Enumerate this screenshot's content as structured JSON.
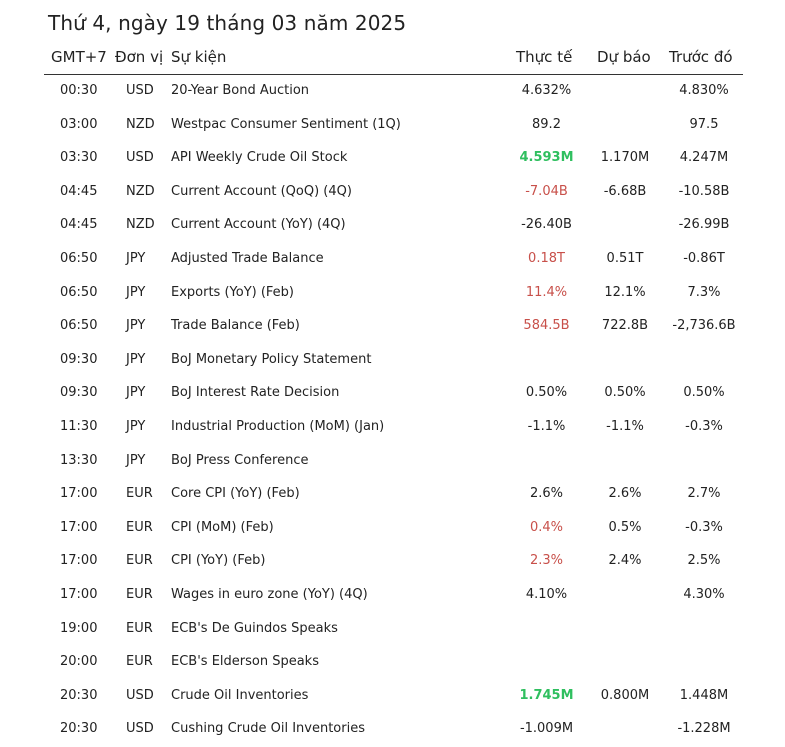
{
  "title": "Thứ 4, ngày 19 tháng 03 năm 2025",
  "headers": {
    "time": "GMT+7",
    "currency": "Đơn vị",
    "event": "Sự kiện",
    "actual": "Thực tế",
    "forecast": "Dự báo",
    "previous": "Trước đó"
  },
  "colors": {
    "negative": "#c8504a",
    "positive": "#2fbf5f"
  },
  "rows": [
    {
      "time": "00:30",
      "cur": "USD",
      "event": "20-Year Bond Auction",
      "actual": "4.632%",
      "actual_state": "neutral",
      "forecast": "",
      "previous": "4.830%"
    },
    {
      "time": "03:00",
      "cur": "NZD",
      "event": "Westpac Consumer Sentiment (1Q)",
      "actual": "89.2",
      "actual_state": "neutral",
      "forecast": "",
      "previous": "97.5"
    },
    {
      "time": "03:30",
      "cur": "USD",
      "event": "API Weekly Crude Oil Stock",
      "actual": "4.593M",
      "actual_state": "pos",
      "forecast": "1.170M",
      "previous": "4.247M"
    },
    {
      "time": "04:45",
      "cur": "NZD",
      "event": "Current Account (QoQ) (4Q)",
      "actual": "-7.04B",
      "actual_state": "neg",
      "forecast": "-6.68B",
      "previous": "-10.58B"
    },
    {
      "time": "04:45",
      "cur": "NZD",
      "event": "Current Account (YoY) (4Q)",
      "actual": "-26.40B",
      "actual_state": "neutral",
      "forecast": "",
      "previous": "-26.99B"
    },
    {
      "time": "06:50",
      "cur": "JPY",
      "event": "Adjusted Trade Balance",
      "actual": "0.18T",
      "actual_state": "neg",
      "forecast": "0.51T",
      "previous": "-0.86T"
    },
    {
      "time": "06:50",
      "cur": "JPY",
      "event": "Exports (YoY) (Feb)",
      "actual": "11.4%",
      "actual_state": "neg",
      "forecast": "12.1%",
      "previous": "7.3%"
    },
    {
      "time": "06:50",
      "cur": "JPY",
      "event": "Trade Balance (Feb)",
      "actual": "584.5B",
      "actual_state": "neg",
      "forecast": "722.8B",
      "previous": "-2,736.6B"
    },
    {
      "time": "09:30",
      "cur": "JPY",
      "event": "BoJ Monetary Policy Statement",
      "actual": "",
      "actual_state": "neutral",
      "forecast": "",
      "previous": ""
    },
    {
      "time": "09:30",
      "cur": "JPY",
      "event": "BoJ Interest Rate Decision",
      "actual": "0.50%",
      "actual_state": "neutral",
      "forecast": "0.50%",
      "previous": "0.50%"
    },
    {
      "time": "11:30",
      "cur": "JPY",
      "event": "Industrial Production (MoM) (Jan)",
      "actual": "-1.1%",
      "actual_state": "neutral",
      "forecast": "-1.1%",
      "previous": "-0.3%"
    },
    {
      "time": "13:30",
      "cur": "JPY",
      "event": "BoJ Press Conference",
      "actual": "",
      "actual_state": "neutral",
      "forecast": "",
      "previous": ""
    },
    {
      "time": "17:00",
      "cur": "EUR",
      "event": "Core CPI (YoY) (Feb)",
      "actual": "2.6%",
      "actual_state": "neutral",
      "forecast": "2.6%",
      "previous": "2.7%"
    },
    {
      "time": "17:00",
      "cur": "EUR",
      "event": "CPI (MoM) (Feb)",
      "actual": "0.4%",
      "actual_state": "neg",
      "forecast": "0.5%",
      "previous": "-0.3%"
    },
    {
      "time": "17:00",
      "cur": "EUR",
      "event": "CPI (YoY) (Feb)",
      "actual": "2.3%",
      "actual_state": "neg",
      "forecast": "2.4%",
      "previous": "2.5%"
    },
    {
      "time": "17:00",
      "cur": "EUR",
      "event": "Wages in euro zone (YoY) (4Q)",
      "actual": "4.10%",
      "actual_state": "neutral",
      "forecast": "",
      "previous": "4.30%"
    },
    {
      "time": "19:00",
      "cur": "EUR",
      "event": "ECB's De Guindos Speaks",
      "actual": "",
      "actual_state": "neutral",
      "forecast": "",
      "previous": ""
    },
    {
      "time": "20:00",
      "cur": "EUR",
      "event": "ECB's Elderson Speaks",
      "actual": "",
      "actual_state": "neutral",
      "forecast": "",
      "previous": ""
    },
    {
      "time": "20:30",
      "cur": "USD",
      "event": "Crude Oil Inventories",
      "actual": "1.745M",
      "actual_state": "pos",
      "forecast": "0.800M",
      "previous": "1.448M"
    },
    {
      "time": "20:30",
      "cur": "USD",
      "event": "Cushing Crude Oil Inventories",
      "actual": "-1.009M",
      "actual_state": "neutral",
      "forecast": "",
      "previous": "-1.228M"
    }
  ]
}
